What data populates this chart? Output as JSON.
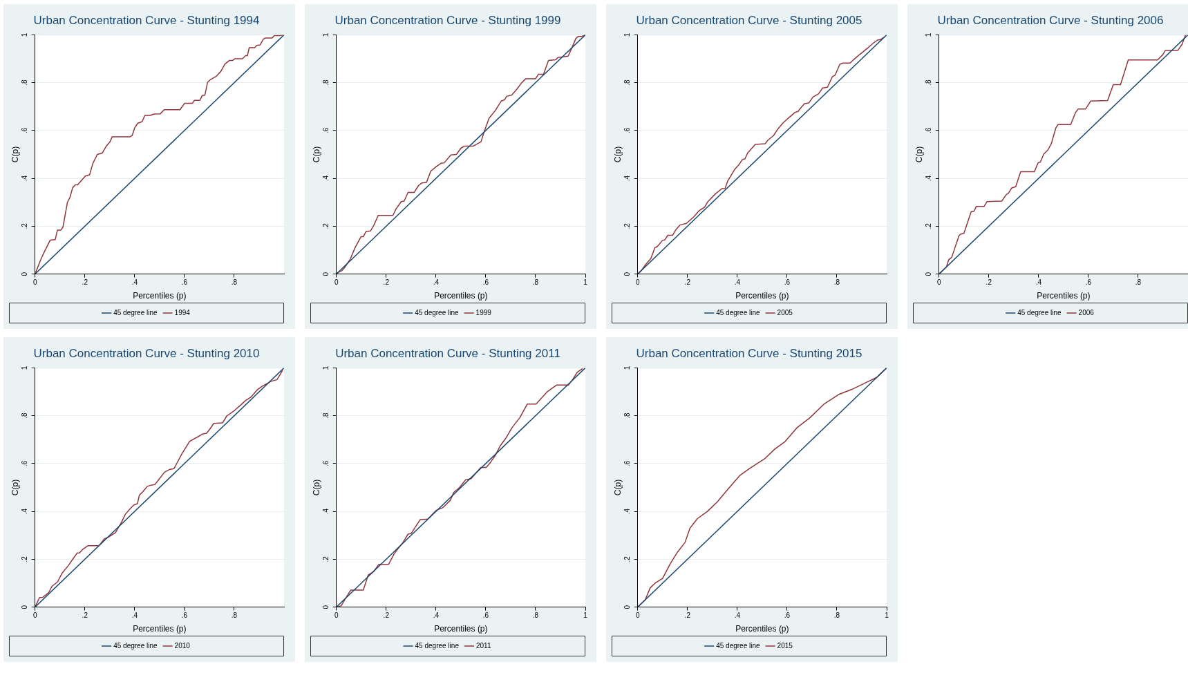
{
  "chart_data": [
    {
      "type": "line",
      "title": "Urban Concentration Curve - Stunting 1994",
      "xlabel": "Percentiles (p)",
      "ylabel": "C(p)",
      "xlim": [
        0,
        1
      ],
      "ylim": [
        0,
        1
      ],
      "xticks": [
        {
          "value": 0,
          "label": "0"
        },
        {
          "value": 0.2,
          "label": ".2"
        },
        {
          "value": 0.4,
          "label": ".4"
        },
        {
          "value": 0.6,
          "label": ".6"
        },
        {
          "value": 0.8,
          "label": ".8"
        }
      ],
      "yticks": [
        {
          "value": 0,
          "label": "0"
        },
        {
          "value": 0.2,
          "label": ".2"
        },
        {
          "value": 0.4,
          "label": ".4"
        },
        {
          "value": 0.6,
          "label": ".6"
        },
        {
          "value": 0.8,
          "label": ".8"
        },
        {
          "value": 1,
          "label": "1"
        }
      ],
      "grid": "y",
      "legend": "bottom",
      "series": [
        {
          "name": "45 degree line",
          "color": "#1a476f",
          "x": [
            0,
            1
          ],
          "values": [
            0,
            1
          ]
        },
        {
          "name": "1994",
          "color": "#90353b",
          "x": [
            0,
            0.022,
            0.035,
            0.061,
            0.081,
            0.09,
            0.104,
            0.112,
            0.13,
            0.14,
            0.151,
            0.162,
            0.171,
            0.202,
            0.219,
            0.232,
            0.25,
            0.27,
            0.285,
            0.3,
            0.31,
            0.382,
            0.39,
            0.4,
            0.412,
            0.43,
            0.441,
            0.463,
            0.478,
            0.503,
            0.519,
            0.582,
            0.601,
            0.632,
            0.64,
            0.662,
            0.671,
            0.682,
            0.693,
            0.706,
            0.728,
            0.746,
            0.763,
            0.781,
            0.794,
            0.802,
            0.833,
            0.846,
            0.853,
            0.86,
            0.882,
            0.89,
            0.904,
            0.917,
            0.925,
            0.952,
            0.961,
            0.982,
            0.996
          ],
          "values": [
            0,
            0.058,
            0.088,
            0.142,
            0.144,
            0.184,
            0.184,
            0.196,
            0.3,
            0.32,
            0.361,
            0.373,
            0.373,
            0.41,
            0.415,
            0.462,
            0.5,
            0.506,
            0.533,
            0.551,
            0.574,
            0.574,
            0.579,
            0.611,
            0.63,
            0.637,
            0.663,
            0.663,
            0.669,
            0.67,
            0.687,
            0.687,
            0.714,
            0.714,
            0.726,
            0.726,
            0.746,
            0.748,
            0.802,
            0.814,
            0.827,
            0.847,
            0.878,
            0.893,
            0.893,
            0.9,
            0.9,
            0.913,
            0.913,
            0.946,
            0.946,
            0.956,
            0.958,
            0.982,
            0.987,
            0.987,
            0.997,
            0.997,
            1
          ]
        }
      ]
    },
    {
      "type": "line",
      "title": "Urban Concentration Curve - Stunting 1999",
      "xlabel": "Percentiles (p)",
      "ylabel": "C(p)",
      "xlim": [
        0,
        1
      ],
      "ylim": [
        0,
        1
      ],
      "xticks": [
        {
          "value": 0,
          "label": "0"
        },
        {
          "value": 0.2,
          "label": ".2"
        },
        {
          "value": 0.4,
          "label": ".4"
        },
        {
          "value": 0.6,
          "label": ".6"
        },
        {
          "value": 0.8,
          "label": ".8"
        },
        {
          "value": 1,
          "label": "1"
        }
      ],
      "yticks": [
        {
          "value": 0,
          "label": "0"
        },
        {
          "value": 0.2,
          "label": ".2"
        },
        {
          "value": 0.4,
          "label": ".4"
        },
        {
          "value": 0.6,
          "label": ".6"
        },
        {
          "value": 0.8,
          "label": ".8"
        },
        {
          "value": 1,
          "label": "1"
        }
      ],
      "grid": "y",
      "legend": "bottom",
      "series": [
        {
          "name": "45 degree line",
          "color": "#1a476f",
          "x": [
            0,
            1
          ],
          "values": [
            0,
            1
          ]
        },
        {
          "name": "1999",
          "color": "#90353b",
          "x": [
            0,
            0.012,
            0.021,
            0.034,
            0.056,
            0.074,
            0.099,
            0.108,
            0.119,
            0.137,
            0.151,
            0.168,
            0.227,
            0.24,
            0.261,
            0.272,
            0.288,
            0.312,
            0.33,
            0.344,
            0.362,
            0.379,
            0.402,
            0.42,
            0.433,
            0.46,
            0.482,
            0.5,
            0.514,
            0.55,
            0.581,
            0.593,
            0.613,
            0.638,
            0.662,
            0.675,
            0.684,
            0.704,
            0.725,
            0.743,
            0.76,
            0.8,
            0.811,
            0.832,
            0.852,
            0.881,
            0.89,
            0.931,
            0.949,
            0.962,
            0.971,
            0.985,
            1
          ],
          "values": [
            0,
            0.01,
            0.013,
            0.028,
            0.063,
            0.108,
            0.156,
            0.156,
            0.178,
            0.18,
            0.205,
            0.245,
            0.245,
            0.273,
            0.303,
            0.305,
            0.341,
            0.341,
            0.37,
            0.381,
            0.383,
            0.43,
            0.45,
            0.463,
            0.465,
            0.498,
            0.5,
            0.526,
            0.535,
            0.535,
            0.553,
            0.593,
            0.651,
            0.683,
            0.723,
            0.728,
            0.743,
            0.748,
            0.773,
            0.798,
            0.816,
            0.816,
            0.835,
            0.835,
            0.893,
            0.896,
            0.905,
            0.911,
            0.953,
            0.985,
            0.993,
            0.993,
            1
          ]
        }
      ]
    },
    {
      "type": "line",
      "title": "Urban Concentration Curve - Stunting 2005",
      "xlabel": "Percentiles (p)",
      "ylabel": "C(p)",
      "xlim": [
        0,
        1
      ],
      "ylim": [
        0,
        1
      ],
      "xticks": [
        {
          "value": 0,
          "label": "0"
        },
        {
          "value": 0.2,
          "label": ".2"
        },
        {
          "value": 0.4,
          "label": ".4"
        },
        {
          "value": 0.6,
          "label": ".6"
        },
        {
          "value": 0.8,
          "label": ".8"
        }
      ],
      "yticks": [
        {
          "value": 0,
          "label": "0"
        },
        {
          "value": 0.2,
          "label": ".2"
        },
        {
          "value": 0.4,
          "label": ".4"
        },
        {
          "value": 0.6,
          "label": ".6"
        },
        {
          "value": 0.8,
          "label": ".8"
        },
        {
          "value": 1,
          "label": "1"
        }
      ],
      "grid": "y",
      "legend": "bottom",
      "series": [
        {
          "name": "45 degree line",
          "color": "#1a476f",
          "x": [
            0,
            1
          ],
          "values": [
            0,
            1
          ]
        },
        {
          "name": "2005",
          "color": "#90353b",
          "x": [
            0,
            0.015,
            0.032,
            0.053,
            0.069,
            0.079,
            0.099,
            0.109,
            0.121,
            0.14,
            0.153,
            0.17,
            0.196,
            0.226,
            0.247,
            0.269,
            0.282,
            0.312,
            0.338,
            0.351,
            0.362,
            0.39,
            0.405,
            0.42,
            0.431,
            0.441,
            0.472,
            0.512,
            0.523,
            0.545,
            0.562,
            0.584,
            0.603,
            0.631,
            0.644,
            0.657,
            0.67,
            0.687,
            0.704,
            0.726,
            0.743,
            0.762,
            0.782,
            0.793,
            0.812,
            0.825,
            0.853,
            0.868,
            0.885,
            0.903,
            0.924,
            0.946,
            0.963,
            0.974,
            0.99
          ],
          "values": [
            0,
            0.015,
            0.04,
            0.065,
            0.11,
            0.115,
            0.14,
            0.143,
            0.162,
            0.162,
            0.185,
            0.205,
            0.212,
            0.24,
            0.265,
            0.28,
            0.303,
            0.335,
            0.357,
            0.358,
            0.39,
            0.438,
            0.455,
            0.478,
            0.482,
            0.505,
            0.542,
            0.545,
            0.56,
            0.578,
            0.605,
            0.632,
            0.65,
            0.675,
            0.68,
            0.697,
            0.712,
            0.715,
            0.74,
            0.753,
            0.778,
            0.781,
            0.825,
            0.832,
            0.877,
            0.882,
            0.882,
            0.897,
            0.912,
            0.927,
            0.945,
            0.965,
            0.978,
            0.98,
            0.99
          ]
        }
      ]
    },
    {
      "type": "line",
      "title": "Urban Concentration Curve - Stunting 2006",
      "xlabel": "Percentiles (p)",
      "ylabel": "C(p)",
      "xlim": [
        0,
        1
      ],
      "ylim": [
        0,
        1
      ],
      "xticks": [
        {
          "value": 0,
          "label": "0"
        },
        {
          "value": 0.2,
          "label": ".2"
        },
        {
          "value": 0.4,
          "label": ".4"
        },
        {
          "value": 0.6,
          "label": ".6"
        },
        {
          "value": 0.8,
          "label": ".8"
        }
      ],
      "yticks": [
        {
          "value": 0,
          "label": "0"
        },
        {
          "value": 0.2,
          "label": ".2"
        },
        {
          "value": 0.4,
          "label": ".4"
        },
        {
          "value": 0.6,
          "label": ".6"
        },
        {
          "value": 0.8,
          "label": ".8"
        },
        {
          "value": 1,
          "label": "1"
        }
      ],
      "grid": "y",
      "legend": "bottom",
      "series": [
        {
          "name": "45 degree line",
          "color": "#1a476f",
          "x": [
            0,
            1
          ],
          "values": [
            0,
            1
          ]
        },
        {
          "name": "2006",
          "color": "#90353b",
          "x": [
            0,
            0.03,
            0.039,
            0.051,
            0.08,
            0.089,
            0.1,
            0.129,
            0.141,
            0.15,
            0.181,
            0.193,
            0.252,
            0.27,
            0.279,
            0.292,
            0.308,
            0.328,
            0.383,
            0.398,
            0.407,
            0.421,
            0.437,
            0.451,
            0.469,
            0.478,
            0.529,
            0.548,
            0.559,
            0.589,
            0.609,
            0.677,
            0.7,
            0.729,
            0.76,
            0.878,
            0.899,
            0.909,
            0.959,
            0.976,
            0.99
          ],
          "values": [
            0,
            0.03,
            0.06,
            0.07,
            0.16,
            0.168,
            0.17,
            0.26,
            0.263,
            0.283,
            0.283,
            0.303,
            0.305,
            0.332,
            0.338,
            0.36,
            0.365,
            0.428,
            0.428,
            0.465,
            0.468,
            0.502,
            0.518,
            0.545,
            0.61,
            0.625,
            0.625,
            0.675,
            0.69,
            0.69,
            0.723,
            0.725,
            0.792,
            0.792,
            0.895,
            0.895,
            0.917,
            0.935,
            0.935,
            0.96,
            1
          ]
        }
      ]
    },
    {
      "type": "line",
      "title": "Urban Concentration Curve - Stunting 2010",
      "xlabel": "Percentiles (p)",
      "ylabel": "C(p)",
      "xlim": [
        0,
        1
      ],
      "ylim": [
        0,
        1
      ],
      "xticks": [
        {
          "value": 0,
          "label": "0"
        },
        {
          "value": 0.2,
          "label": ".2"
        },
        {
          "value": 0.4,
          "label": ".4"
        },
        {
          "value": 0.6,
          "label": ".6"
        },
        {
          "value": 0.8,
          "label": ".8"
        }
      ],
      "yticks": [
        {
          "value": 0,
          "label": "0"
        },
        {
          "value": 0.2,
          "label": ".2"
        },
        {
          "value": 0.4,
          "label": ".4"
        },
        {
          "value": 0.6,
          "label": ".6"
        },
        {
          "value": 0.8,
          "label": ".8"
        },
        {
          "value": 1,
          "label": "1"
        }
      ],
      "grid": "y",
      "legend": "bottom",
      "series": [
        {
          "name": "45 degree line",
          "color": "#1a476f",
          "x": [
            0,
            1
          ],
          "values": [
            0,
            1
          ]
        },
        {
          "name": "2010",
          "color": "#90353b",
          "x": [
            0,
            0.018,
            0.031,
            0.055,
            0.068,
            0.09,
            0.108,
            0.134,
            0.152,
            0.169,
            0.178,
            0.191,
            0.213,
            0.257,
            0.279,
            0.296,
            0.323,
            0.349,
            0.362,
            0.38,
            0.397,
            0.411,
            0.419,
            0.432,
            0.45,
            0.463,
            0.481,
            0.503,
            0.52,
            0.542,
            0.558,
            0.59,
            0.621,
            0.656,
            0.674,
            0.689,
            0.702,
            0.718,
            0.753,
            0.77,
            0.801,
            0.823,
            0.845,
            0.867,
            0.893,
            0.915,
            0.937,
            0.946,
            0.972,
            0.994
          ],
          "values": [
            0,
            0.04,
            0.041,
            0.061,
            0.087,
            0.105,
            0.141,
            0.174,
            0.201,
            0.226,
            0.226,
            0.241,
            0.257,
            0.257,
            0.286,
            0.293,
            0.311,
            0.358,
            0.387,
            0.409,
            0.427,
            0.432,
            0.468,
            0.481,
            0.504,
            0.509,
            0.512,
            0.541,
            0.564,
            0.576,
            0.579,
            0.641,
            0.693,
            0.713,
            0.724,
            0.727,
            0.744,
            0.768,
            0.77,
            0.799,
            0.822,
            0.842,
            0.863,
            0.878,
            0.909,
            0.925,
            0.937,
            0.943,
            0.951,
            0.989
          ]
        }
      ]
    },
    {
      "type": "line",
      "title": "Urban Concentration Curve - Stunting 2011",
      "xlabel": "Percentiles (p)",
      "ylabel": "C(p)",
      "xlim": [
        0,
        1
      ],
      "ylim": [
        0,
        1
      ],
      "xticks": [
        {
          "value": 0,
          "label": "0"
        },
        {
          "value": 0.2,
          "label": ".2"
        },
        {
          "value": 0.4,
          "label": ".4"
        },
        {
          "value": 0.6,
          "label": ".6"
        },
        {
          "value": 0.8,
          "label": ".8"
        },
        {
          "value": 1,
          "label": "1"
        }
      ],
      "yticks": [
        {
          "value": 0,
          "label": "0"
        },
        {
          "value": 0.2,
          "label": ".2"
        },
        {
          "value": 0.4,
          "label": ".4"
        },
        {
          "value": 0.6,
          "label": ".6"
        },
        {
          "value": 0.8,
          "label": ".8"
        },
        {
          "value": 1,
          "label": "1"
        }
      ],
      "grid": "y",
      "legend": "bottom",
      "series": [
        {
          "name": "45 degree line",
          "color": "#1a476f",
          "x": [
            0,
            1
          ],
          "values": [
            0,
            1
          ]
        },
        {
          "name": "2011",
          "color": "#90353b",
          "x": [
            0,
            0.019,
            0.037,
            0.058,
            0.108,
            0.128,
            0.15,
            0.171,
            0.21,
            0.232,
            0.266,
            0.288,
            0.3,
            0.337,
            0.367,
            0.402,
            0.428,
            0.458,
            0.471,
            0.493,
            0.519,
            0.541,
            0.563,
            0.58,
            0.602,
            0.619,
            0.637,
            0.658,
            0.68,
            0.706,
            0.737,
            0.767,
            0.802,
            0.819,
            0.849,
            0.884,
            0.932,
            0.95,
            0.967,
            0.989
          ],
          "values": [
            0,
            0.005,
            0.037,
            0.071,
            0.071,
            0.134,
            0.149,
            0.179,
            0.179,
            0.223,
            0.268,
            0.305,
            0.307,
            0.366,
            0.368,
            0.405,
            0.416,
            0.447,
            0.479,
            0.498,
            0.532,
            0.537,
            0.563,
            0.584,
            0.584,
            0.605,
            0.632,
            0.674,
            0.705,
            0.751,
            0.792,
            0.849,
            0.849,
            0.868,
            0.902,
            0.928,
            0.928,
            0.953,
            0.981,
            0.997
          ]
        }
      ]
    },
    {
      "type": "line",
      "title": "Urban Concentration Curve - Stunting 2015",
      "xlabel": "Percentiles (p)",
      "ylabel": "C(p)",
      "xlim": [
        0,
        1
      ],
      "ylim": [
        0,
        1
      ],
      "xticks": [
        {
          "value": 0,
          "label": "0"
        },
        {
          "value": 0.2,
          "label": ".2"
        },
        {
          "value": 0.4,
          "label": ".4"
        },
        {
          "value": 0.6,
          "label": ".6"
        },
        {
          "value": 0.8,
          "label": ".8"
        },
        {
          "value": 1,
          "label": "1"
        }
      ],
      "yticks": [
        {
          "value": 0,
          "label": "0"
        },
        {
          "value": 0.2,
          "label": ".2"
        },
        {
          "value": 0.4,
          "label": ".4"
        },
        {
          "value": 0.6,
          "label": ".6"
        },
        {
          "value": 0.8,
          "label": ".8"
        },
        {
          "value": 1,
          "label": "1"
        }
      ],
      "grid": "y",
      "legend": "bottom",
      "series": [
        {
          "name": "45 degree line",
          "color": "#1a476f",
          "x": [
            0,
            1
          ],
          "values": [
            0,
            1
          ]
        },
        {
          "name": "2015",
          "color": "#90353b",
          "x": [
            0,
            0.03,
            0.05,
            0.07,
            0.1,
            0.13,
            0.16,
            0.19,
            0.21,
            0.24,
            0.28,
            0.32,
            0.36,
            0.41,
            0.45,
            0.51,
            0.55,
            0.59,
            0.64,
            0.69,
            0.75,
            0.81,
            0.86,
            0.92,
            0.96,
            1
          ],
          "values": [
            0,
            0.03,
            0.08,
            0.1,
            0.12,
            0.18,
            0.23,
            0.27,
            0.33,
            0.37,
            0.4,
            0.44,
            0.49,
            0.55,
            0.58,
            0.62,
            0.66,
            0.69,
            0.75,
            0.79,
            0.85,
            0.89,
            0.91,
            0.94,
            0.96,
            1
          ]
        }
      ]
    }
  ]
}
